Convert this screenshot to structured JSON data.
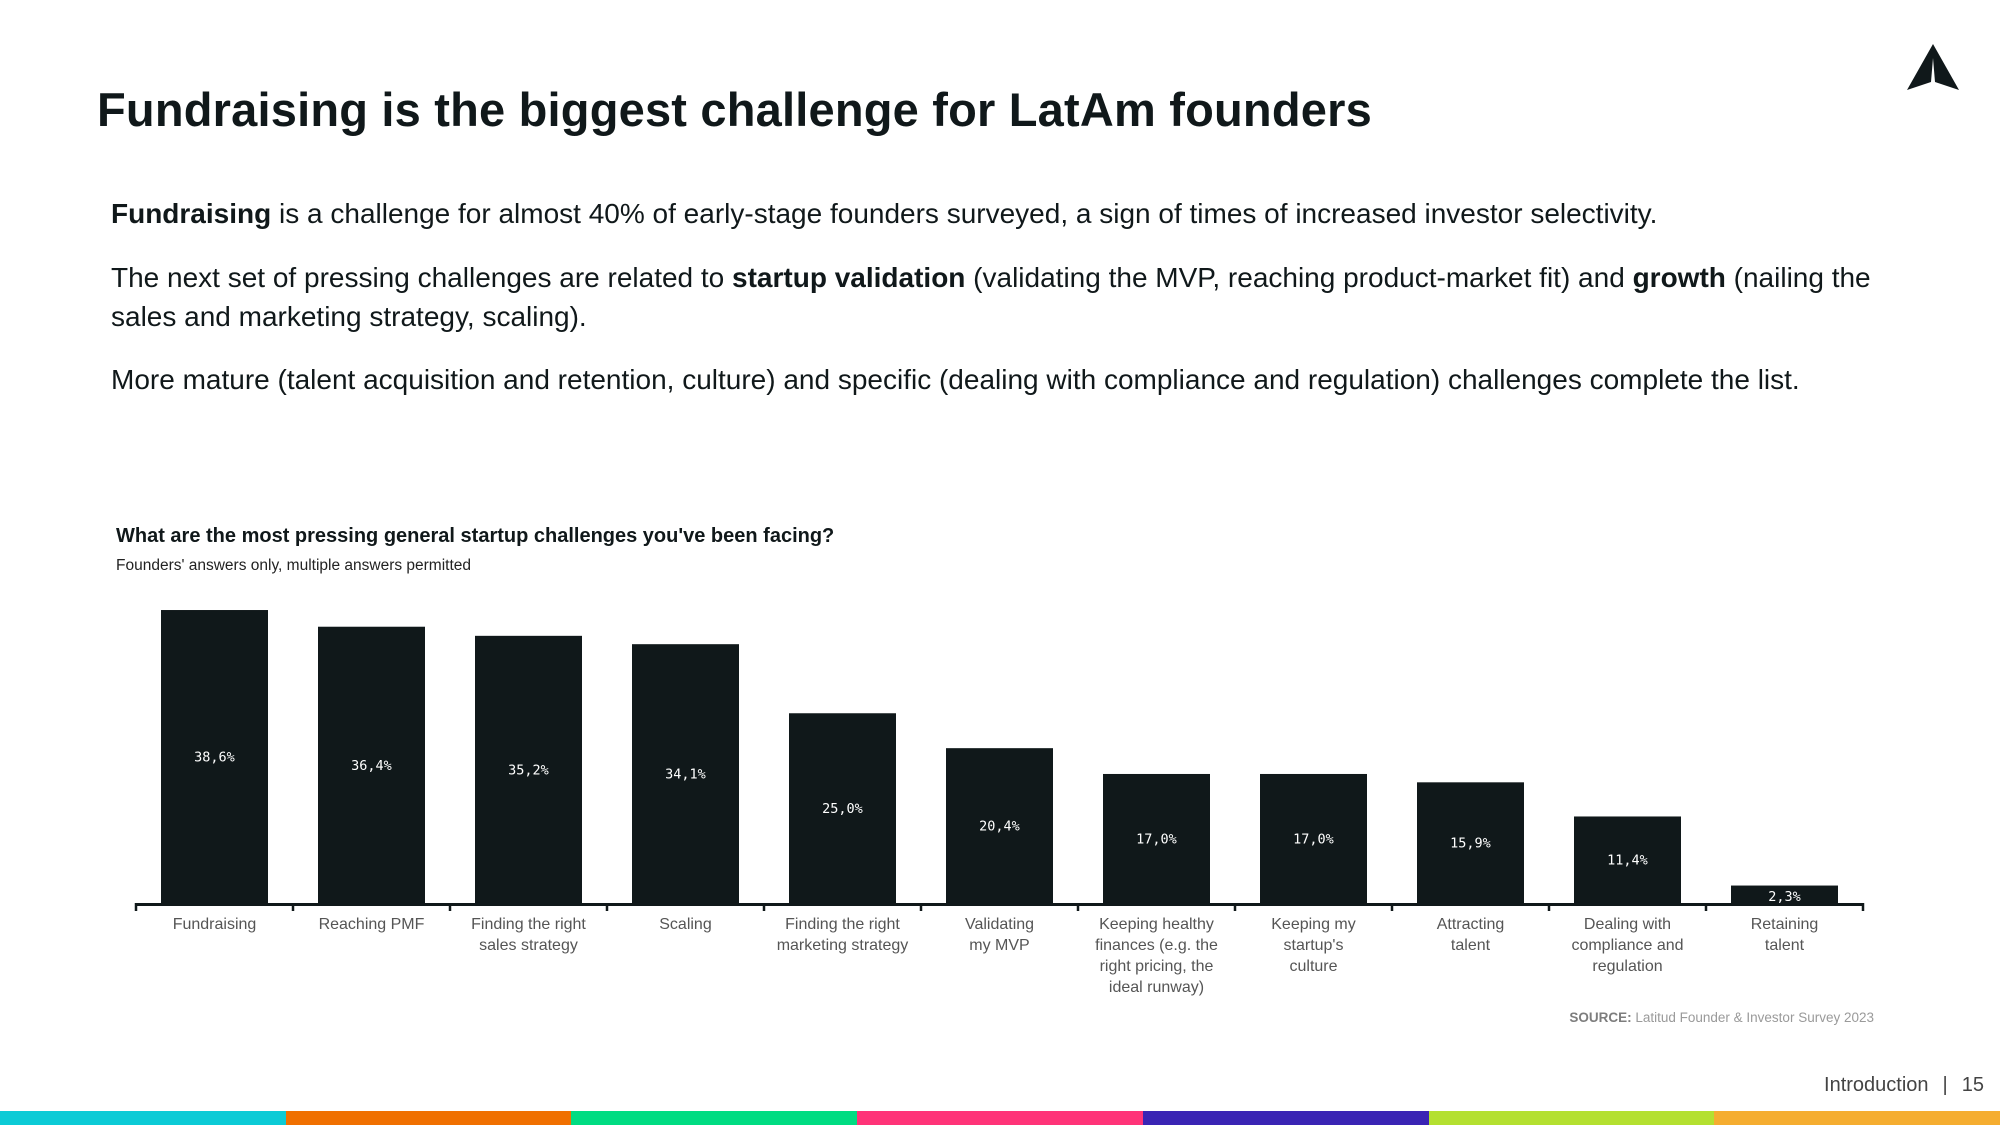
{
  "slide": {
    "title": "Fundraising is the biggest challenge for LatAm founders",
    "paragraphs": [
      {
        "bold1": "Fundraising",
        "text1": " is a challenge for almost 40% of early-stage founders surveyed, a sign of times of increased investor selectivity."
      },
      {
        "text0": "The next set of pressing challenges are related to ",
        "bold1": "startup validation",
        "text1": " (validating the MVP, reaching product-market fit) and ",
        "bold2": "growth",
        "text2": " (nailing the sales and marketing strategy, scaling)."
      },
      {
        "text0": "More mature (talent acquisition and retention, culture) and specific (dealing with compliance and regulation) challenges complete the list."
      }
    ],
    "source_label": "SOURCE:",
    "source_text": " Latitud Founder & Investor Survey 2023",
    "footer_section": "Introduction",
    "footer_sep": "|",
    "page_number": "15",
    "strip_colors": [
      "#0ccbd6",
      "#f07000",
      "#00dc82",
      "#ff3378",
      "#3a24b4",
      "#b4e030",
      "#f5ad30"
    ],
    "logo": "Latitud"
  },
  "chart_data": {
    "type": "bar",
    "title": "What are the most pressing general startup challenges you've been facing?",
    "subtitle": "Founders' answers only, multiple answers permitted",
    "xlabel": "",
    "ylabel": "",
    "ylim": [
      0,
      40
    ],
    "grid": false,
    "bar_color": "#10181a",
    "categories": [
      [
        "Fundraising"
      ],
      [
        "Reaching PMF"
      ],
      [
        "Finding the right",
        "sales strategy"
      ],
      [
        "Scaling"
      ],
      [
        "Finding the right",
        "marketing strategy"
      ],
      [
        "Validating",
        "my MVP"
      ],
      [
        "Keeping healthy",
        "finances (e.g. the",
        "right pricing, the",
        "ideal runway)"
      ],
      [
        "Keeping my",
        "startup's",
        "culture"
      ],
      [
        "Attracting",
        "talent"
      ],
      [
        "Dealing with",
        "compliance and",
        "regulation"
      ],
      [
        "Retaining",
        "talent"
      ]
    ],
    "values": [
      38.6,
      36.4,
      35.2,
      34.1,
      25.0,
      20.4,
      17.0,
      17.0,
      15.9,
      11.4,
      2.3
    ],
    "data_labels": [
      "38,6%",
      "36,4%",
      "35,2%",
      "34,1%",
      "25,0%",
      "20,4%",
      "17,0%",
      "17,0%",
      "15,9%",
      "11,4%",
      "2,3%"
    ]
  }
}
